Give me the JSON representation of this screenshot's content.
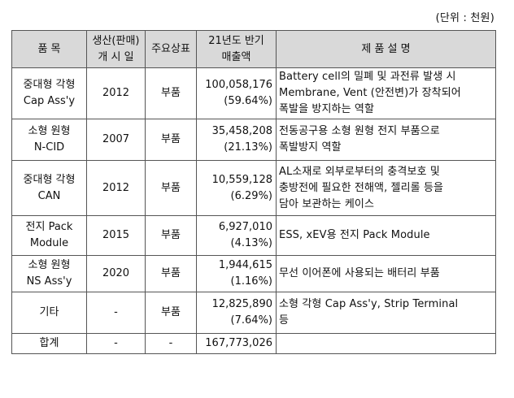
{
  "unit_label": "(단위 : 천원)",
  "header": {
    "product": "품 목",
    "launch_line1": "생산(판매)",
    "launch_line2": "개 시 일",
    "brand": "주요상표",
    "sales_line1": "21년도 반기",
    "sales_line2": "매출액",
    "description": "제 품 설 명"
  },
  "rows": [
    {
      "name_line1": "중대형 각형",
      "name_line2": "Cap Ass'y",
      "year": "2012",
      "brand": "부품",
      "sales": "100,058,176",
      "share": "(59.64%)",
      "desc_line1": "Battery cell의 밀폐 및 과전류 발생 시",
      "desc_line2": "Membrane, Vent (안전변)가 장착되어",
      "desc_line3": "폭발을 방지하는 역할"
    },
    {
      "name_line1": "소형 원형",
      "name_line2": "N-CID",
      "year": "2007",
      "brand": "부품",
      "sales": "35,458,208",
      "share": "(21.13%)",
      "desc_line1": "전동공구용 소형 원형 전지 부품으로",
      "desc_line2": "폭발방지 역할"
    },
    {
      "name_line1": "중대형 각형",
      "name_line2": "CAN",
      "year": "2012",
      "brand": "부품",
      "sales": "10,559,128",
      "share": "(6.29%)",
      "desc_line1": "AL소재로 외부로부터의 충격보호 및",
      "desc_line2": "충방전에 필요한 전해액, 젤리롤 등을",
      "desc_line3": "담아 보관하는 케이스"
    },
    {
      "name_line1": "전지 Pack",
      "name_line2": "Module",
      "year": "2015",
      "brand": "부품",
      "sales": "6,927,010",
      "share": "(4.13%)",
      "desc_line1": "ESS, xEV용 전지 Pack Module"
    },
    {
      "name_line1": "소형 원형",
      "name_line2": "NS Ass'y",
      "year": "2020",
      "brand": "부품",
      "sales": "1,944,615",
      "share": "(1.16%)",
      "desc_line1": "무선 이어폰에 사용되는 배터리 부품"
    },
    {
      "name_line1": "기타",
      "year": "-",
      "brand": "부품",
      "sales": "12,825,890",
      "share": "(7.64%)",
      "desc_line1": "소형 각형 Cap Ass'y, Strip Terminal",
      "desc_line2": "등"
    }
  ],
  "total": {
    "label": "합계",
    "year": "-",
    "brand": "-",
    "sales": "167,773,026",
    "desc": ""
  }
}
